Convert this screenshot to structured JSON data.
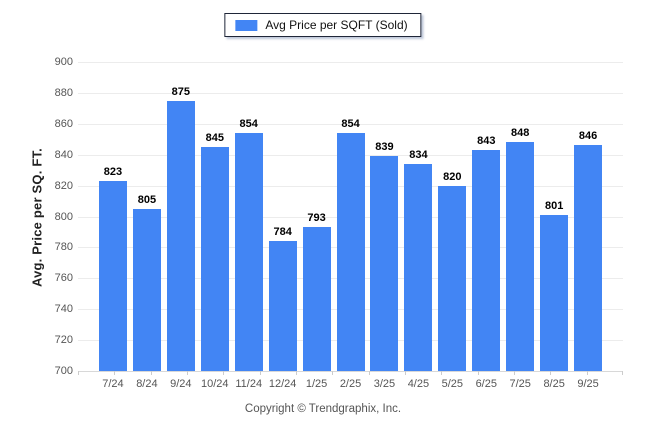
{
  "legend": {
    "label": "Avg Price per SQFT (Sold)",
    "swatch_color": "#4285f4"
  },
  "chart_data": {
    "type": "bar",
    "title": "",
    "series_name": "Avg Price per SQFT (Sold)",
    "categories": [
      "7/24",
      "8/24",
      "9/24",
      "10/24",
      "11/24",
      "12/24",
      "1/25",
      "2/25",
      "3/25",
      "4/25",
      "5/25",
      "6/25",
      "7/25",
      "8/25",
      "9/25"
    ],
    "values": [
      823,
      805,
      875,
      845,
      854,
      784,
      793,
      854,
      839,
      834,
      820,
      843,
      848,
      801,
      846
    ],
    "xlabel": "",
    "ylabel": "Avg. Price per SQ. FT.",
    "ylim": [
      700,
      900
    ],
    "yticks": [
      700,
      720,
      740,
      760,
      780,
      800,
      820,
      840,
      860,
      880,
      900
    ],
    "grid": "horizontal",
    "legend_position": "top-center",
    "bar_color": "#4285f4",
    "value_labels": true
  },
  "footer": {
    "copyright": "Copyright © Trendgraphix, Inc."
  }
}
